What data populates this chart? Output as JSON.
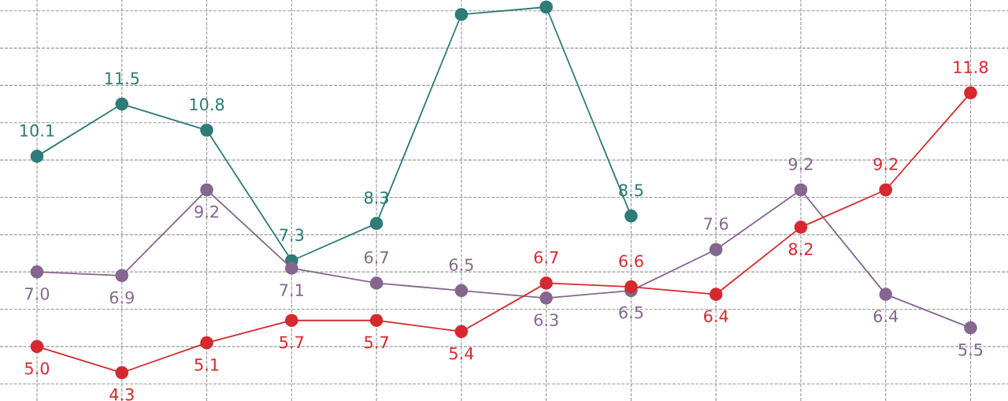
{
  "chart_data": {
    "type": "line",
    "categories": [
      null,
      null,
      null,
      null,
      null,
      null,
      null,
      null,
      null,
      null,
      null,
      null
    ],
    "series": [
      {
        "color": "#2e7b78",
        "values": [
          10.1,
          11.5,
          10.8,
          7.3,
          8.3,
          13.9,
          14.1,
          8.5,
          null,
          null,
          null,
          null
        ],
        "value_labels": [
          "10.1",
          "11.5",
          "10.8",
          "7.3",
          "8.3",
          null,
          null,
          "8.5",
          null,
          null,
          null,
          null
        ]
      },
      {
        "color": "#85668f",
        "values": [
          7.0,
          6.9,
          9.2,
          7.1,
          6.7,
          6.5,
          6.3,
          6.5,
          7.6,
          9.2,
          6.4,
          5.5
        ],
        "value_labels": [
          "7.0",
          "6.9",
          "9.2",
          "7.1",
          "6.7",
          "6.5",
          "6.3",
          "6.5",
          "7.6",
          "9.2",
          "6.4",
          "5.5"
        ]
      },
      {
        "color": "#d42a2f",
        "values": [
          5.0,
          4.3,
          5.1,
          5.7,
          5.7,
          5.4,
          6.7,
          6.6,
          6.4,
          8.2,
          9.2,
          11.8
        ],
        "value_labels": [
          "5.0",
          "4.3",
          "5.1",
          "5.7",
          "5.7",
          "5.4",
          "6.7",
          "6.6",
          "6.4",
          "8.2",
          "9.2",
          "11.8"
        ]
      }
    ],
    "ylim": [
      3.54,
      14.29
    ],
    "yticks": [
      {
        "value": 4,
        "label": null
      },
      {
        "value": 5,
        "label": null
      },
      {
        "value": 6,
        "label": null
      },
      {
        "value": 7,
        "label": null
      },
      {
        "value": 8,
        "label": null
      },
      {
        "value": 9,
        "label": null
      },
      {
        "value": 10,
        "label": null
      },
      {
        "value": 11,
        "label": null
      },
      {
        "value": 12,
        "label": null
      },
      {
        "value": 13,
        "label": null
      },
      {
        "value": 14,
        "label": null
      }
    ],
    "grid": true,
    "marker": "circle",
    "line_style": "solid"
  }
}
